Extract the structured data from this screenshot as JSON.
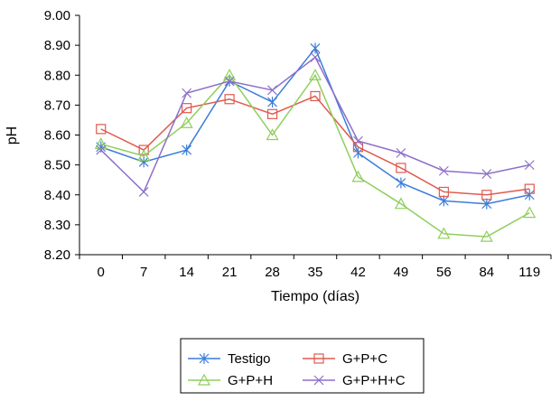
{
  "chart_data": {
    "type": "line",
    "title": "",
    "xlabel": "Tiempo (días)",
    "ylabel": "pH",
    "categories": [
      "0",
      "7",
      "14",
      "21",
      "28",
      "35",
      "42",
      "49",
      "56",
      "84",
      "119"
    ],
    "ylim": [
      8.2,
      9.0
    ],
    "yticks": [
      "8.20",
      "8.30",
      "8.40",
      "8.50",
      "8.60",
      "8.70",
      "8.80",
      "8.90",
      "9.00"
    ],
    "grid": false,
    "legend_position": "bottom",
    "series": [
      {
        "name": "Testigo",
        "color": "#3b7dd8",
        "marker": "asterisk",
        "values": [
          8.56,
          8.51,
          8.55,
          8.78,
          8.71,
          8.89,
          8.54,
          8.44,
          8.38,
          8.37,
          8.4
        ]
      },
      {
        "name": "G+P+C",
        "color": "#e05a4f",
        "marker": "square",
        "values": [
          8.62,
          8.55,
          8.69,
          8.72,
          8.67,
          8.73,
          8.56,
          8.49,
          8.41,
          8.4,
          8.42
        ]
      },
      {
        "name": "G+P+H",
        "color": "#8fce5c",
        "marker": "triangle",
        "values": [
          8.57,
          8.53,
          8.64,
          8.8,
          8.6,
          8.8,
          8.46,
          8.37,
          8.27,
          8.26,
          8.34
        ]
      },
      {
        "name": "G+P+H+C",
        "color": "#8e6fc9",
        "marker": "x",
        "values": [
          8.55,
          8.41,
          8.74,
          8.78,
          8.75,
          8.86,
          8.58,
          8.54,
          8.48,
          8.47,
          8.5
        ]
      }
    ]
  }
}
